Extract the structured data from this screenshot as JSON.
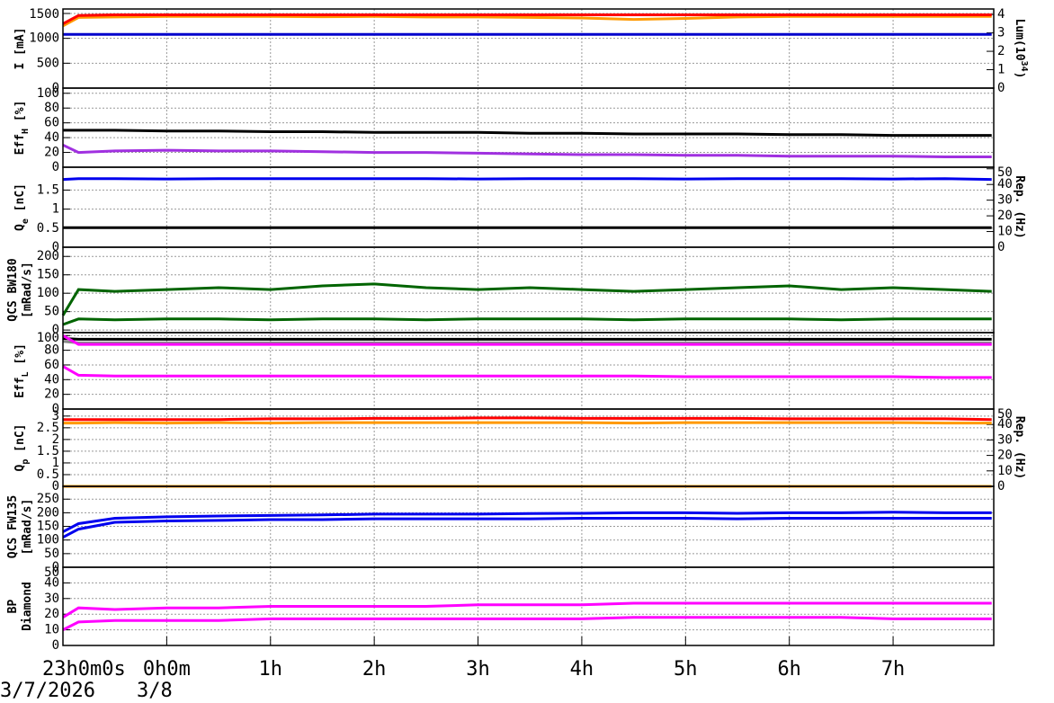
{
  "dates": [
    "3/7/2026",
    "3/8"
  ],
  "chart_data": [
    {
      "type": "line",
      "ylabel": [
        {
          "t": "I [mA]"
        }
      ],
      "y2label": [
        {
          "t": "Lum(10"
        },
        {
          "t": "34",
          "shift": "super"
        },
        {
          "t": ")"
        }
      ],
      "ylim": [
        0,
        1590
      ],
      "yticks": [
        0,
        500,
        1000,
        1500
      ],
      "y2lim": [
        0,
        4.3
      ],
      "y2ticks": [
        0,
        1,
        2,
        3,
        4
      ],
      "grid": true,
      "x": [
        0,
        0.15,
        0.5,
        1,
        1.5,
        2,
        2.5,
        3,
        3.5,
        4,
        4.5,
        5,
        5.5,
        6,
        6.5,
        7,
        7.5,
        8,
        8.5,
        8.95
      ],
      "series": [
        {
          "color": "#ff9900",
          "values": [
            1250,
            1420,
            1430,
            1440,
            1440,
            1440,
            1435,
            1440,
            1430,
            1430,
            1420,
            1410,
            1380,
            1400,
            1430,
            1440,
            1440,
            1440,
            1440,
            1440
          ]
        },
        {
          "color": "#ff0000",
          "axis": "y2",
          "values": [
            3.5,
            3.95,
            3.98,
            3.98,
            3.98,
            3.98,
            3.98,
            3.98,
            3.98,
            3.98,
            3.98,
            3.98,
            3.98,
            3.98,
            3.98,
            3.98,
            3.98,
            3.98,
            3.98,
            3.98
          ]
        },
        {
          "color": "#0000cc",
          "values": [
            1080,
            1080,
            1080,
            1080,
            1080,
            1080,
            1080,
            1080,
            1080,
            1080,
            1080,
            1080,
            1080,
            1080,
            1080,
            1080,
            1080,
            1080,
            1080,
            1080
          ]
        }
      ]
    },
    {
      "type": "line",
      "ylabel": [
        {
          "t": "Eff"
        },
        {
          "t": "H",
          "shift": "sub"
        },
        {
          "t": " [%]"
        }
      ],
      "ylim": [
        0,
        107
      ],
      "yticks": [
        0,
        20,
        40,
        60,
        80,
        100
      ],
      "grid": true,
      "x": [
        0,
        0.15,
        0.5,
        1,
        1.5,
        2,
        2.5,
        3,
        3.5,
        4,
        4.5,
        5,
        5.5,
        6,
        6.5,
        7,
        7.5,
        8,
        8.5,
        8.95
      ],
      "series": [
        {
          "color": "#000000",
          "values": [
            50,
            50,
            50,
            49,
            49,
            48,
            48,
            47,
            47,
            47,
            46,
            46,
            45,
            45,
            45,
            44,
            44,
            43,
            43,
            43
          ]
        },
        {
          "color": "#a030e0",
          "values": [
            30,
            20,
            22,
            23,
            22,
            22,
            21,
            20,
            20,
            19,
            18,
            17,
            17,
            16,
            16,
            15,
            15,
            15,
            14,
            14
          ]
        }
      ]
    },
    {
      "type": "line",
      "ylabel": [
        {
          "t": "Q"
        },
        {
          "t": "e",
          "shift": "sub"
        },
        {
          "t": " [nC]"
        }
      ],
      "y2label": [
        {
          "t": "Rep. (Hz)"
        }
      ],
      "ylim": [
        0,
        2.1
      ],
      "yticks": [
        0,
        0.5,
        1,
        1.5
      ],
      "y2lim": [
        0,
        51
      ],
      "y2ticks": [
        0,
        10,
        20,
        30,
        40,
        50
      ],
      "grid": true,
      "x": [
        0,
        0.15,
        0.5,
        1,
        1.5,
        2,
        2.5,
        3,
        3.5,
        4,
        4.5,
        5,
        5.5,
        6,
        6.5,
        7,
        7.5,
        8,
        8.5,
        8.95
      ],
      "series": [
        {
          "color": "#0000ee",
          "values": [
            1.78,
            1.8,
            1.8,
            1.79,
            1.8,
            1.8,
            1.8,
            1.8,
            1.8,
            1.79,
            1.8,
            1.8,
            1.8,
            1.79,
            1.8,
            1.8,
            1.8,
            1.79,
            1.8,
            1.78
          ]
        },
        {
          "color": "#000000",
          "axis": "y2",
          "values": [
            12.5,
            12.5,
            12.5,
            12.5,
            12.5,
            12.5,
            12.5,
            12.5,
            12.5,
            12.5,
            12.5,
            12.5,
            12.5,
            12.5,
            12.5,
            12.5,
            12.5,
            12.5,
            12.5,
            12.5
          ]
        }
      ]
    },
    {
      "type": "line",
      "ylabel": [
        {
          "t": "QCS BW180"
        }
      ],
      "ylabel2": [
        {
          "t": "[mRad/s]"
        }
      ],
      "ylim": [
        -7,
        225
      ],
      "yticks": [
        0,
        50,
        100,
        150,
        200
      ],
      "grid": true,
      "x": [
        0,
        0.15,
        0.5,
        1,
        1.5,
        2,
        2.5,
        3,
        3.5,
        4,
        4.5,
        5,
        5.5,
        6,
        6.5,
        7,
        7.5,
        8,
        8.5,
        8.95
      ],
      "series": [
        {
          "color": "#006400",
          "values": [
            40,
            110,
            105,
            110,
            115,
            110,
            120,
            125,
            115,
            110,
            115,
            110,
            105,
            110,
            115,
            120,
            110,
            115,
            110,
            105
          ]
        },
        {
          "color": "#006400",
          "values": [
            15,
            30,
            28,
            30,
            30,
            28,
            30,
            30,
            28,
            30,
            30,
            30,
            28,
            30,
            30,
            30,
            28,
            30,
            30,
            30
          ]
        }
      ]
    },
    {
      "type": "line",
      "ylabel": [
        {
          "t": "Eff"
        },
        {
          "t": "L",
          "shift": "sub"
        },
        {
          "t": " [%]"
        }
      ],
      "ylim": [
        0,
        104
      ],
      "yticks": [
        0,
        20,
        40,
        60,
        80,
        100
      ],
      "grid": true,
      "x": [
        0,
        0.15,
        0.5,
        1,
        1.5,
        2,
        2.5,
        3,
        3.5,
        4,
        4.5,
        5,
        5.5,
        6,
        6.5,
        7,
        7.5,
        8,
        8.5,
        8.95
      ],
      "series": [
        {
          "color": "#000000",
          "values": [
            96,
            95,
            95,
            95,
            95,
            95,
            95,
            95,
            95,
            95,
            95,
            95,
            95,
            95,
            95,
            95,
            95,
            95,
            95,
            95
          ]
        },
        {
          "color": "#888888",
          "values": [
            92,
            90,
            90,
            90,
            90,
            90,
            90,
            90,
            90,
            90,
            90,
            90,
            90,
            90,
            90,
            90,
            90,
            90,
            90,
            90
          ]
        },
        {
          "color": "#ff00ff",
          "values": [
            100,
            88,
            88,
            88,
            88,
            88,
            88,
            88,
            88,
            88,
            88,
            88,
            88,
            88,
            88,
            88,
            88,
            88,
            88,
            88
          ]
        },
        {
          "color": "#ff00ff",
          "values": [
            58,
            46,
            45,
            45,
            45,
            45,
            45,
            45,
            45,
            45,
            45,
            45,
            45,
            44,
            44,
            44,
            44,
            44,
            43,
            43
          ]
        }
      ]
    },
    {
      "type": "line",
      "ylabel": [
        {
          "t": "Q"
        },
        {
          "t": "p",
          "shift": "sub"
        },
        {
          "t": " [nC]"
        }
      ],
      "y2label": [
        {
          "t": "Rep. (Hz)"
        }
      ],
      "ylim": [
        0,
        3.3
      ],
      "yticks": [
        0,
        0.5,
        1,
        1.5,
        2,
        2.5,
        3
      ],
      "y2lim": [
        0,
        50
      ],
      "y2ticks": [
        0,
        10,
        20,
        30,
        40,
        50
      ],
      "grid": true,
      "x": [
        0,
        0.15,
        0.5,
        1,
        1.5,
        2,
        2.5,
        3,
        3.5,
        4,
        4.5,
        5,
        5.5,
        6,
        6.5,
        7,
        7.5,
        8,
        8.5,
        8.95
      ],
      "series": [
        {
          "color": "#ff0000",
          "values": [
            2.85,
            2.85,
            2.85,
            2.85,
            2.85,
            2.88,
            2.88,
            2.9,
            2.9,
            2.92,
            2.92,
            2.9,
            2.9,
            2.9,
            2.9,
            2.88,
            2.88,
            2.88,
            2.88,
            2.85
          ]
        },
        {
          "color": "#ff9900",
          "values": [
            2.7,
            2.7,
            2.72,
            2.7,
            2.72,
            2.7,
            2.72,
            2.72,
            2.72,
            2.72,
            2.72,
            2.72,
            2.7,
            2.72,
            2.72,
            2.72,
            2.72,
            2.72,
            2.7,
            2.7
          ]
        },
        {
          "color": "#ff9900",
          "axis": "y2",
          "values": [
            0,
            0,
            0,
            0,
            0,
            0,
            0,
            0,
            0,
            0,
            0,
            0,
            0,
            0,
            0,
            0,
            0,
            0,
            0,
            0
          ]
        }
      ]
    },
    {
      "type": "line",
      "ylabel": [
        {
          "t": "QCS FW135"
        }
      ],
      "ylabel2": [
        {
          "t": "[mRad/s]"
        }
      ],
      "ylim": [
        0,
        297
      ],
      "yticks": [
        0,
        50,
        100,
        150,
        200,
        250
      ],
      "grid": true,
      "x": [
        0,
        0.15,
        0.5,
        1,
        1.5,
        2,
        2.5,
        3,
        3.5,
        4,
        4.5,
        5,
        5.5,
        6,
        6.5,
        7,
        7.5,
        8,
        8.5,
        8.95
      ],
      "series": [
        {
          "color": "#0000ee",
          "values": [
            130,
            160,
            180,
            185,
            188,
            190,
            192,
            195,
            195,
            195,
            197,
            198,
            200,
            200,
            198,
            200,
            200,
            202,
            200,
            200
          ]
        },
        {
          "color": "#0000ee",
          "values": [
            110,
            140,
            165,
            170,
            172,
            175,
            175,
            178,
            178,
            178,
            178,
            180,
            180,
            180,
            178,
            180,
            180,
            180,
            180,
            180
          ]
        }
      ]
    },
    {
      "type": "line",
      "ylabel": [
        {
          "t": "BP"
        }
      ],
      "ylabel2": [
        {
          "t": "Diamond"
        }
      ],
      "ylim": [
        0,
        50
      ],
      "yticks": [
        0,
        10,
        20,
        30,
        40,
        50
      ],
      "grid": true,
      "x": [
        0,
        0.15,
        0.5,
        1,
        1.5,
        2,
        2.5,
        3,
        3.5,
        4,
        4.5,
        5,
        5.5,
        6,
        6.5,
        7,
        7.5,
        8,
        8.5,
        8.95
      ],
      "series": [
        {
          "color": "#ff00ff",
          "values": [
            18,
            24,
            23,
            24,
            24,
            25,
            25,
            25,
            25,
            26,
            26,
            26,
            27,
            27,
            27,
            27,
            27,
            27,
            27,
            27
          ]
        },
        {
          "color": "#ff00ff",
          "values": [
            10,
            15,
            16,
            16,
            16,
            17,
            17,
            17,
            17,
            17,
            17,
            17,
            18,
            18,
            18,
            18,
            18,
            17,
            17,
            17
          ]
        }
      ]
    }
  ],
  "xlim": [
    0,
    8.97
  ],
  "xticks": [
    {
      "value": 0,
      "label": "23h0m0s"
    },
    {
      "value": 1,
      "label": "0h0m"
    },
    {
      "value": 2,
      "label": "1h"
    },
    {
      "value": 3,
      "label": "2h"
    },
    {
      "value": 4,
      "label": "3h"
    },
    {
      "value": 5,
      "label": "4h"
    },
    {
      "value": 6,
      "label": "5h"
    },
    {
      "value": 7,
      "label": "6h"
    },
    {
      "value": 8,
      "label": "7h"
    }
  ]
}
